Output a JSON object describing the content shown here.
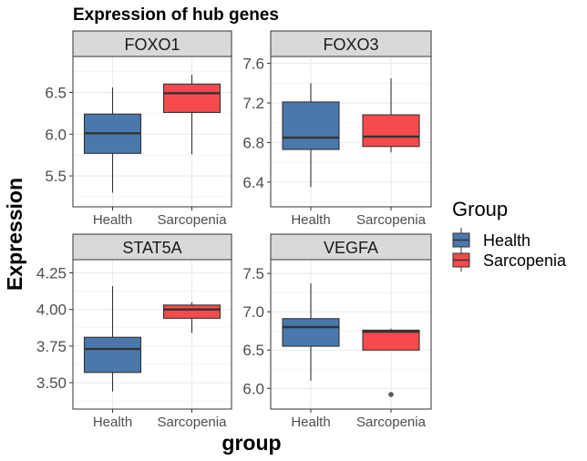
{
  "chart_data": {
    "type": "box",
    "title": "Expression of hub genes",
    "xlabel": "group",
    "ylabel": "Expression",
    "categories": [
      "Health",
      "Sarcopenia"
    ],
    "legend": {
      "title": "Group",
      "position": "right",
      "items": [
        {
          "label": "Health",
          "color": "#4a78ad"
        },
        {
          "label": "Sarcopenia",
          "color": "#f64a4c"
        }
      ]
    },
    "grid": true,
    "panels": [
      {
        "name": "FOXO1",
        "ylim": [
          5.13,
          6.93
        ],
        "yticks": [
          5.5,
          6.0,
          6.5
        ],
        "ytick_labels": [
          "5.5",
          "6.0",
          "6.5"
        ],
        "boxes": [
          {
            "group": "Health",
            "whisker_low": 5.3,
            "q1": 5.77,
            "median": 6.01,
            "q3": 6.24,
            "whisker_high": 6.56,
            "outliers": []
          },
          {
            "group": "Sarcopenia",
            "whisker_low": 5.76,
            "q1": 6.26,
            "median": 6.49,
            "q3": 6.6,
            "whisker_high": 6.71,
            "outliers": []
          }
        ]
      },
      {
        "name": "FOXO3",
        "ylim": [
          6.15,
          7.67
        ],
        "yticks": [
          6.4,
          6.8,
          7.2,
          7.6
        ],
        "ytick_labels": [
          "6.4",
          "6.8",
          "7.2",
          "7.6"
        ],
        "boxes": [
          {
            "group": "Health",
            "whisker_low": 6.35,
            "q1": 6.73,
            "median": 6.85,
            "q3": 7.21,
            "whisker_high": 7.4,
            "outliers": []
          },
          {
            "group": "Sarcopenia",
            "whisker_low": 6.7,
            "q1": 6.76,
            "median": 6.86,
            "q3": 7.08,
            "whisker_high": 7.45,
            "outliers": []
          }
        ]
      },
      {
        "name": "STAT5A",
        "ylim": [
          3.32,
          4.34
        ],
        "yticks": [
          3.5,
          3.75,
          4.0,
          4.25
        ],
        "ytick_labels": [
          "3.50",
          "3.75",
          "4.00",
          "4.25"
        ],
        "boxes": [
          {
            "group": "Health",
            "whisker_low": 3.44,
            "q1": 3.57,
            "median": 3.73,
            "q3": 3.81,
            "whisker_high": 4.16,
            "outliers": []
          },
          {
            "group": "Sarcopenia",
            "whisker_low": 3.84,
            "q1": 3.94,
            "median": 4.0,
            "q3": 4.03,
            "whisker_high": 4.05,
            "outliers": []
          }
        ]
      },
      {
        "name": "VEGFA",
        "ylim": [
          5.73,
          7.68
        ],
        "yticks": [
          6.0,
          6.5,
          7.0,
          7.5
        ],
        "ytick_labels": [
          "6.0",
          "6.5",
          "7.0",
          "7.5"
        ],
        "boxes": [
          {
            "group": "Health",
            "whisker_low": 6.1,
            "q1": 6.55,
            "median": 6.8,
            "q3": 6.91,
            "whisker_high": 7.37,
            "outliers": []
          },
          {
            "group": "Sarcopenia",
            "whisker_low": 6.5,
            "q1": 6.5,
            "median": 6.74,
            "q3": 6.76,
            "whisker_high": 6.78,
            "outliers": [
              5.92
            ]
          }
        ]
      }
    ]
  }
}
